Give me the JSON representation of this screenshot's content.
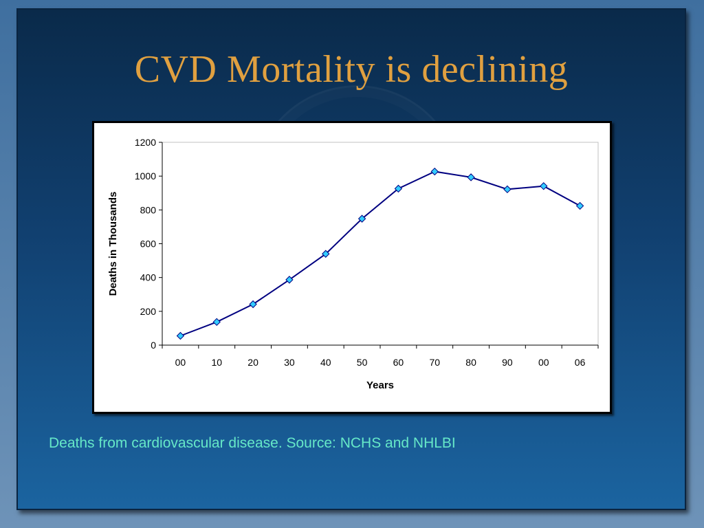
{
  "slide": {
    "title": "CVD Mortality is declining",
    "caption": "Deaths from cardiovascular disease. Source: NCHS and NHLBI"
  },
  "colors": {
    "title": "#e0a040",
    "caption": "#66e8c8",
    "line": "#000080",
    "marker_fill": "#33ccff"
  },
  "chart_data": {
    "type": "line",
    "categories": [
      "00",
      "10",
      "20",
      "30",
      "40",
      "50",
      "60",
      "70",
      "80",
      "90",
      "00",
      "06"
    ],
    "values": [
      55,
      137,
      242,
      387,
      540,
      748,
      926,
      1027,
      993,
      922,
      941,
      824
    ],
    "xlabel": "Years",
    "ylabel": "Deaths in Thousands",
    "ylim": [
      0,
      1200
    ],
    "yticks": [
      0,
      200,
      400,
      600,
      800,
      1000,
      1200
    ],
    "marker": "diamond",
    "grid": false,
    "legend": "none"
  }
}
